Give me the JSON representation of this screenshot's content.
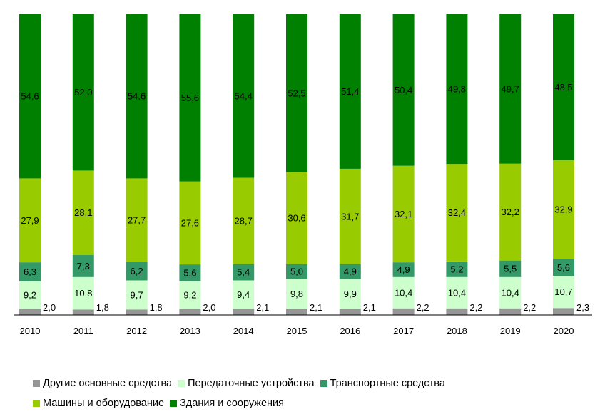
{
  "chart_data": {
    "type": "bar",
    "stacked": true,
    "normalized_percent": true,
    "categories": [
      "2010",
      "2011",
      "2012",
      "2013",
      "2014",
      "2015",
      "2016",
      "2017",
      "2018",
      "2019",
      "2020"
    ],
    "series": [
      {
        "name": "Другие основные средства",
        "color": "#969696",
        "values": [
          2.0,
          1.8,
          1.8,
          2.0,
          2.1,
          2.1,
          2.1,
          2.2,
          2.2,
          2.2,
          2.3
        ]
      },
      {
        "name": "Передаточные устройства",
        "color": "#ccffcc",
        "values": [
          9.2,
          10.8,
          9.7,
          9.2,
          9.4,
          9.8,
          9.9,
          10.4,
          10.4,
          10.4,
          10.7
        ]
      },
      {
        "name": "Транспортные средства",
        "color": "#339966",
        "values": [
          6.3,
          7.3,
          6.2,
          5.6,
          5.4,
          5.0,
          4.9,
          4.9,
          5.2,
          5.5,
          5.6
        ]
      },
      {
        "name": "Машины и оборудование",
        "color": "#99cc00",
        "values": [
          27.9,
          28.1,
          27.7,
          27.6,
          28.7,
          30.6,
          31.7,
          32.1,
          32.4,
          32.2,
          32.9
        ]
      },
      {
        "name": "Здания и сооружения",
        "color": "#008000",
        "values": [
          54.6,
          52.0,
          54.6,
          55.6,
          54.4,
          52.5,
          51.4,
          50.4,
          49.8,
          49.7,
          48.5
        ]
      }
    ],
    "title": "",
    "xlabel": "",
    "ylabel": "",
    "legend_position": "bottom",
    "grid": false,
    "decimal_separator": ","
  }
}
